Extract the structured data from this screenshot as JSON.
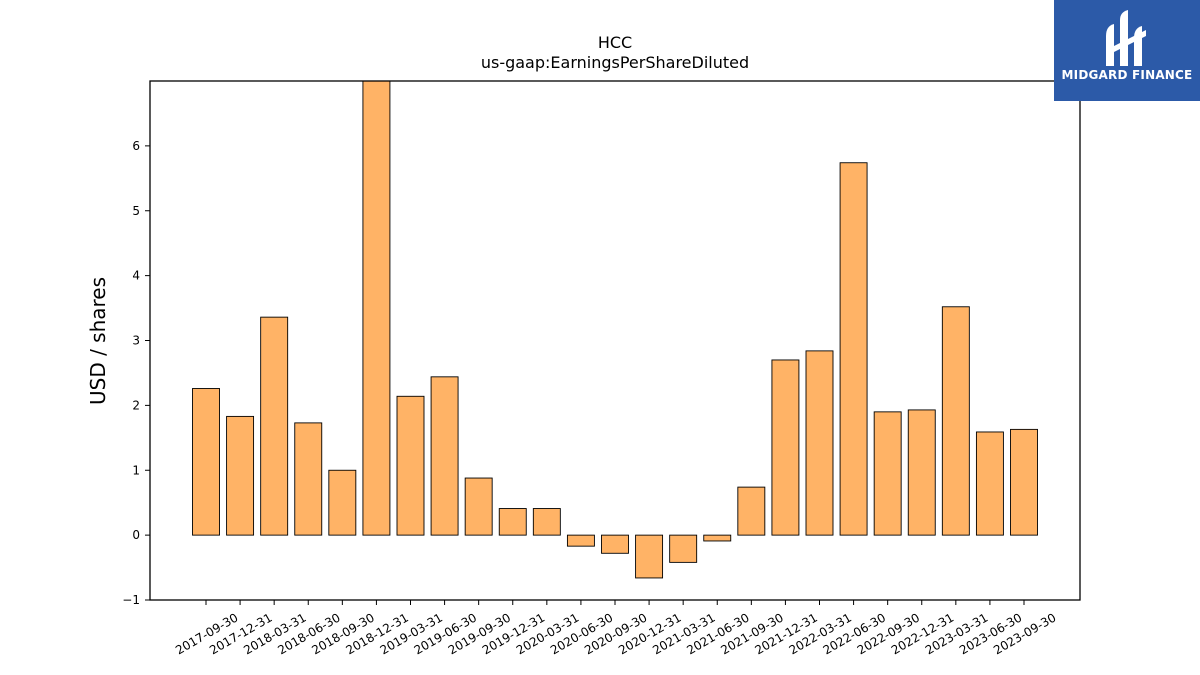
{
  "brand": {
    "name": "MIDGARD FINANCE",
    "color": "#2c5aa8",
    "icon": "midgard-logo-icon"
  },
  "chart_data": {
    "type": "bar",
    "title": "HCC",
    "subtitle": "us-gaap:EarningsPerShareDiluted",
    "ylabel": "USD / shares",
    "xlabel": "",
    "ylim": [
      -1,
      7
    ],
    "yticks": [
      -1,
      0,
      1,
      2,
      3,
      4,
      5,
      6
    ],
    "grid": false,
    "bar_color": "#ffb366",
    "categories": [
      "2017-09-30",
      "2017-12-31",
      "2018-03-31",
      "2018-06-30",
      "2018-09-30",
      "2018-12-31",
      "2019-03-31",
      "2019-06-30",
      "2019-09-30",
      "2019-12-31",
      "2020-03-31",
      "2020-06-30",
      "2020-09-30",
      "2020-12-31",
      "2021-03-31",
      "2021-06-30",
      "2021-09-30",
      "2021-12-31",
      "2022-03-31",
      "2022-06-30",
      "2022-09-30",
      "2022-12-31",
      "2023-03-31",
      "2023-06-30",
      "2023-09-30"
    ],
    "values": [
      2.26,
      1.83,
      3.36,
      1.73,
      1.0,
      7.0,
      2.14,
      2.44,
      0.88,
      0.41,
      0.41,
      -0.17,
      -0.28,
      -0.66,
      -0.42,
      -0.09,
      0.74,
      2.7,
      2.84,
      5.74,
      1.9,
      1.93,
      3.52,
      1.59,
      1.63
    ]
  }
}
